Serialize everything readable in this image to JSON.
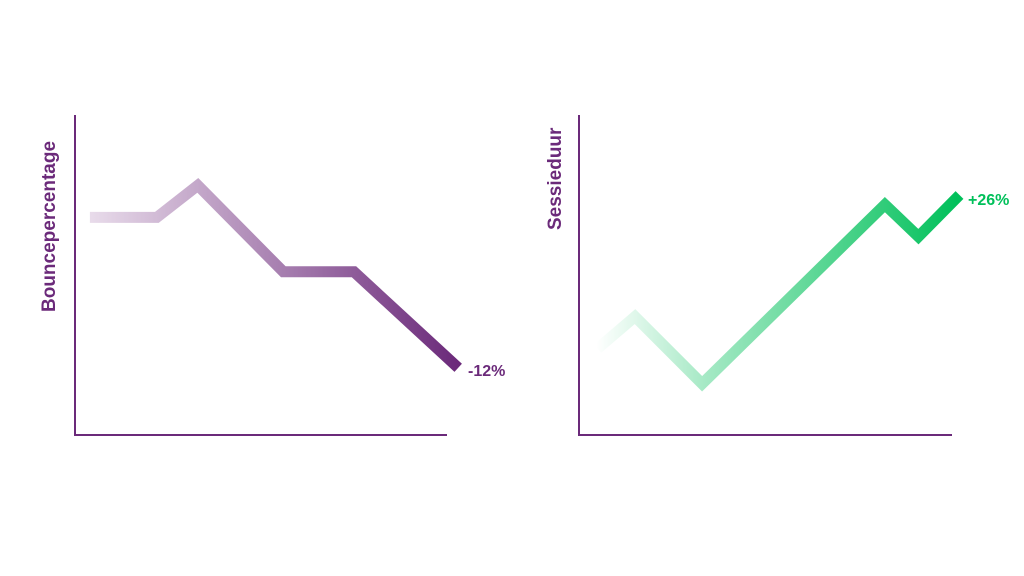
{
  "chart_data": [
    {
      "type": "line",
      "title": "",
      "xlabel": "",
      "ylabel": "Bouncepercentage",
      "xlim": [
        0,
        100
      ],
      "ylim": [
        0,
        100
      ],
      "grid": false,
      "x": [
        4,
        22,
        33,
        56,
        75,
        103
      ],
      "values": [
        68,
        68,
        78,
        51,
        51,
        21
      ],
      "annotation": "-12%",
      "colors": {
        "line_start": "#e8dbea",
        "line_end": "#6b2a7a",
        "axis": "#6b2a7a",
        "annotation": "#6b2a7a"
      }
    },
    {
      "type": "line",
      "title": "",
      "xlabel": "",
      "ylabel": "Sessieduur",
      "xlim": [
        0,
        100
      ],
      "ylim": [
        0,
        100
      ],
      "grid": false,
      "x": [
        5,
        15,
        33,
        82,
        91,
        102
      ],
      "values": [
        27,
        37,
        16,
        72,
        62,
        75
      ],
      "annotation": "+26%",
      "colors": {
        "line_start": "#ffffff",
        "line_end": "#00c05a",
        "axis": "#6b2a7a",
        "annotation": "#00c05a"
      }
    }
  ]
}
